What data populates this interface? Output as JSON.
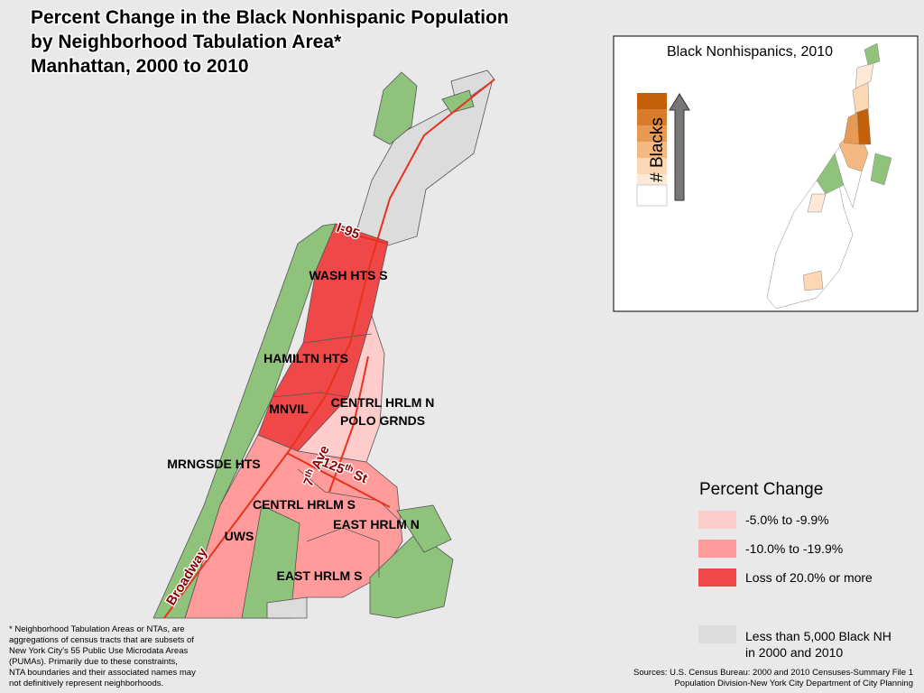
{
  "title": [
    "Percent Change in the Black Nonhispanic Population",
    "by Neighborhood Tabulation Area*",
    "Manhattan, 2000 to 2010"
  ],
  "inset": {
    "title": "Black Nonhispanics, 2010",
    "scale_label": "# Blacks"
  },
  "neighborhoods": [
    "WASH HTS S",
    "HAMILTN HTS",
    "CENTRL HRLM N",
    "POLO GRNDS",
    "MNVIL",
    "MRNGSDE HTS",
    "CENTRL HRLM S",
    "EAST HRLM N",
    "UWS",
    "EAST HRLM S"
  ],
  "streets": {
    "i95": "I-95",
    "seventh_ave": {
      "number": "7",
      "suffix": "th",
      "name": "Ave"
    },
    "street_125": {
      "number": "125",
      "suffix": "th",
      "name": "St"
    },
    "broadway": "Broadway"
  },
  "legend": {
    "title": "Percent Change",
    "items": [
      {
        "label": "-5.0% to -9.9%",
        "color": "#ffcccc"
      },
      {
        "label": "-10.0% to -19.9%",
        "color": "#ff9b9b"
      },
      {
        "label": "Loss of 20.0% or more",
        "color": "#f04848"
      }
    ],
    "no_data": {
      "label": [
        "Less than 5,000 Black NH",
        "in 2000 and 2010"
      ],
      "color": "#dcdcdc"
    }
  },
  "footnote": [
    "* Neighborhood Tabulation Areas or NTAs, are",
    "aggregations of census tracts that are subsets of",
    "New York City's 55 Public Use Microdata Areas",
    "(PUMAs). Primarily due to these constraints,",
    "NTA boundaries and their associated names may",
    "not definitively represent neighborhoods."
  ],
  "sources": [
    "Sources: U.S. Census Bureau: 2000 and 2010 Censuses-Summary File 1",
    "Population Division-New York City Department of City Planning"
  ]
}
